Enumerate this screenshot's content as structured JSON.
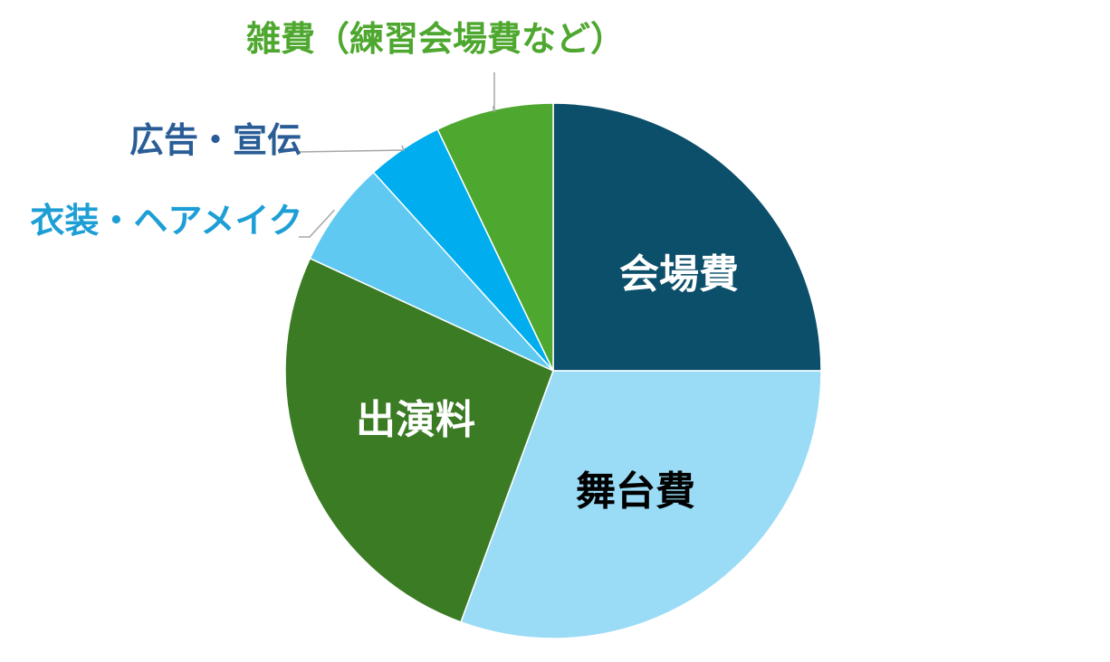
{
  "chart_data": {
    "type": "pie",
    "start": "top",
    "direction": "clockwise",
    "slices": [
      {
        "label": "会場費",
        "value": 25.0,
        "color": "#0B4F6A",
        "label_color": "#FFFFFF",
        "label_position": "inside"
      },
      {
        "label": "舞台費",
        "value": 30.6,
        "color": "#9ADBF6",
        "label_color": "#000000",
        "label_position": "inside"
      },
      {
        "label": "出演料",
        "value": 26.3,
        "color": "#3A7B24",
        "label_color": "#FFFFFF",
        "label_position": "inside"
      },
      {
        "label": "衣装・ヘアメイク",
        "value": 6.4,
        "color": "#5FC9F2",
        "label_color": "#1D9FD6",
        "label_position": "outside"
      },
      {
        "label": "広告・宣伝",
        "value": 4.6,
        "color": "#00ADEE",
        "label_color": "#2A5C96",
        "label_position": "outside"
      },
      {
        "label": "雑費（練習会場費など）",
        "value": 7.1,
        "color": "#4EA72E",
        "label_color": "#4EA72E",
        "label_position": "outside"
      }
    ]
  }
}
